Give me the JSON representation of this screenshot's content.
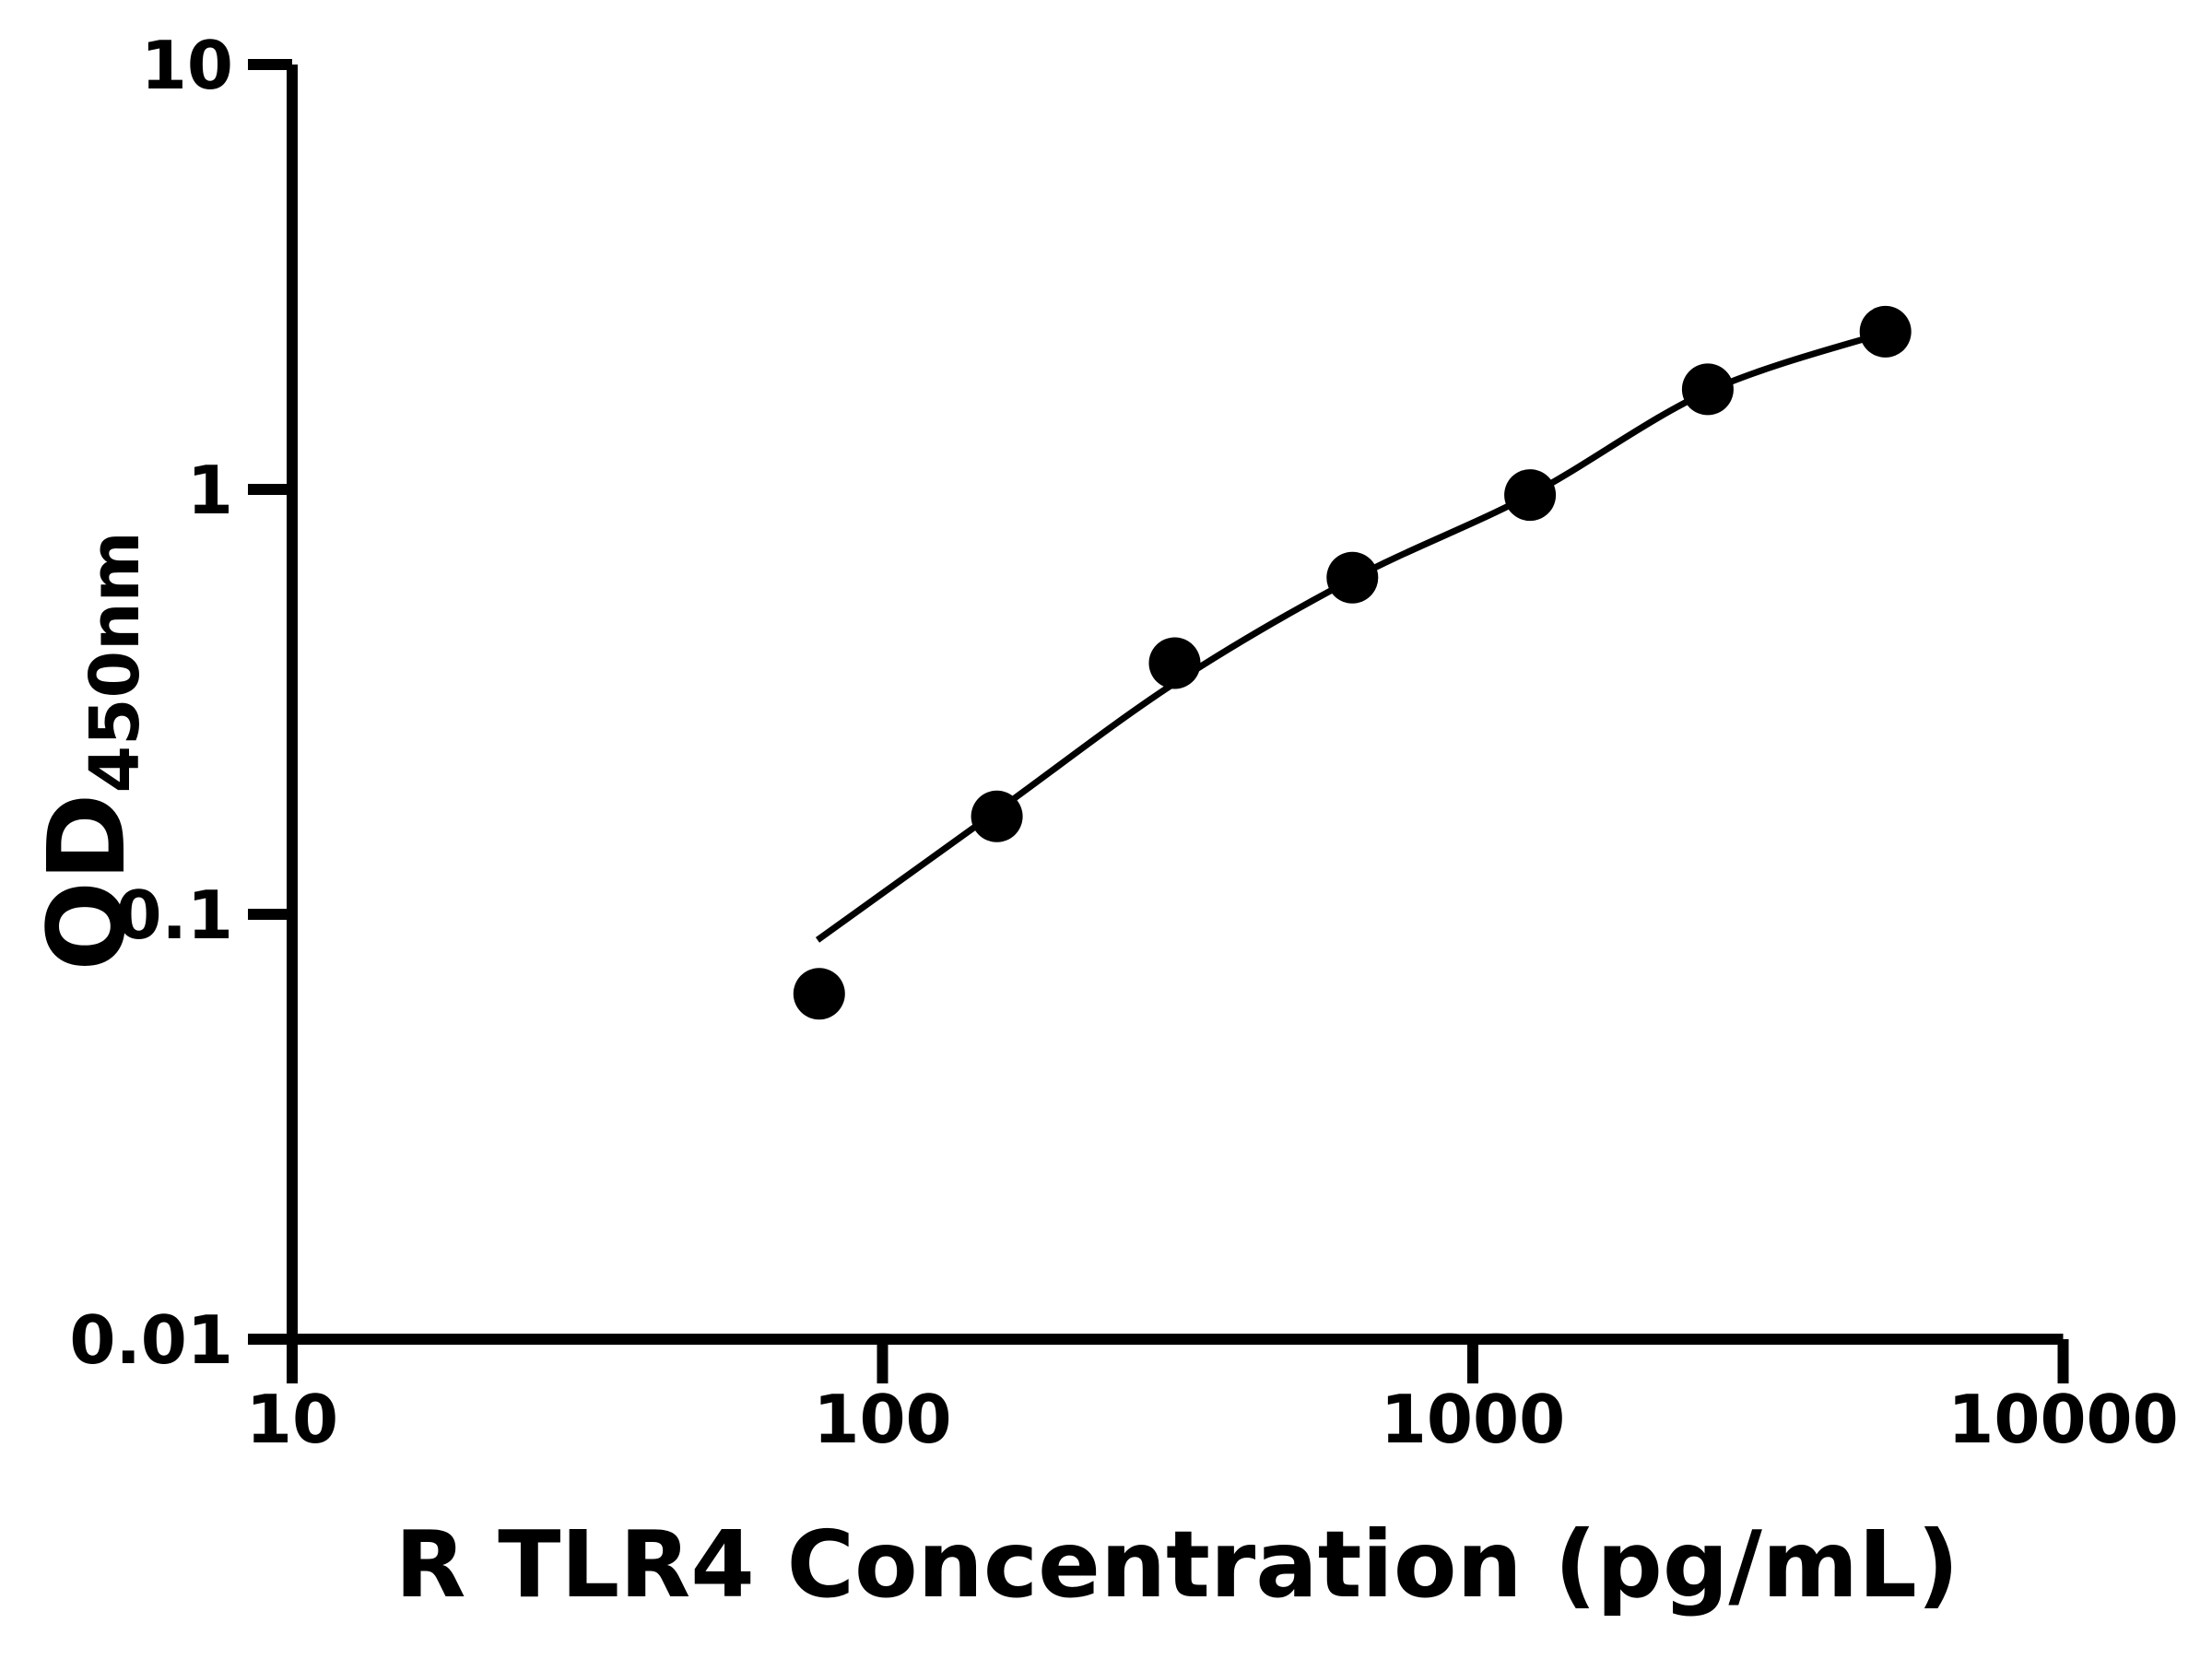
{
  "figure": {
    "background_color": "#ffffff",
    "ink_color": "#000000"
  },
  "chart_data": {
    "type": "scatter",
    "title": "",
    "xlabel": "R TLR4 Concentration (pg/mL)",
    "ylabel_main": "OD",
    "ylabel_sub": "450nm",
    "x_scale": "log",
    "y_scale": "log",
    "xlim": [
      10,
      10000
    ],
    "ylim": [
      0.01,
      10
    ],
    "x_ticks": [
      10,
      100,
      1000,
      10000
    ],
    "x_tick_labels": [
      "10",
      "100",
      "1000",
      "10000"
    ],
    "y_ticks": [
      10,
      1,
      0.1,
      0.01
    ],
    "y_tick_labels": [
      "10",
      "1",
      "0.1",
      "0.01"
    ],
    "grid": false,
    "legend": null,
    "marker_color": "#000000",
    "line_color": "#000000",
    "series": [
      {
        "name": "standard-points",
        "kind": "scatter",
        "marker": "filled-circle",
        "points": [
          {
            "x": 78.125,
            "y": 0.065
          },
          {
            "x": 156.25,
            "y": 0.17
          },
          {
            "x": 312.5,
            "y": 0.39
          },
          {
            "x": 625,
            "y": 0.62
          },
          {
            "x": 1250,
            "y": 0.97
          },
          {
            "x": 2500,
            "y": 1.72
          },
          {
            "x": 5000,
            "y": 2.35
          }
        ]
      },
      {
        "name": "fit-curve",
        "kind": "line",
        "points": [
          {
            "x": 77.6,
            "y": 0.087
          },
          {
            "x": 156.25,
            "y": 0.175
          },
          {
            "x": 312.5,
            "y": 0.35
          },
          {
            "x": 625,
            "y": 0.615
          },
          {
            "x": 1250,
            "y": 0.97
          },
          {
            "x": 2500,
            "y": 1.7
          },
          {
            "x": 5000,
            "y": 2.34
          }
        ]
      }
    ]
  }
}
